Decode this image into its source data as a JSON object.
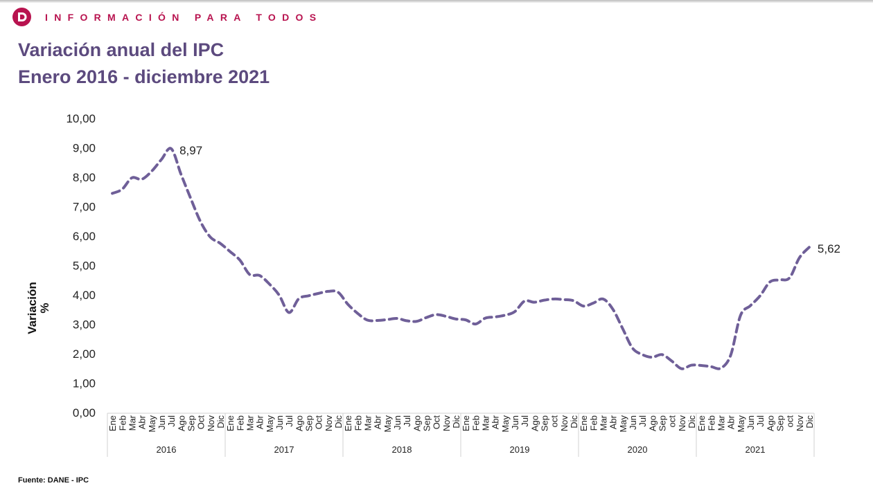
{
  "header": {
    "tagline": "INFORMACIÓN PARA TODOS",
    "logo": "dane-d-logo",
    "brand_color": "#b8134f"
  },
  "title": {
    "line1": "Variación anual del IPC",
    "line2": "Enero 2016 - diciembre 2021",
    "color": "#5c4a7e"
  },
  "footer": {
    "source": "Fuente: DANE - IPC"
  },
  "chart_data": {
    "type": "line",
    "title": "Variación anual del IPC Enero 2016 - diciembre 2021",
    "xlabel": "",
    "ylabel": "Variación %",
    "ylim": [
      0,
      10
    ],
    "yticks": [
      "0,00",
      "1,00",
      "2,00",
      "3,00",
      "4,00",
      "5,00",
      "6,00",
      "7,00",
      "8,00",
      "9,00",
      "10,00"
    ],
    "grid": false,
    "legend": "none",
    "line_style": "dashed",
    "line_color": "#6f5f98",
    "groups": [
      {
        "year": "2016",
        "months": [
          "Ene",
          "Feb",
          "Mar",
          "Abr",
          "May",
          "Jun",
          "Jul",
          "Ago",
          "Sep",
          "Oct",
          "Nov",
          "Dic"
        ]
      },
      {
        "year": "2017",
        "months": [
          "Ene",
          "Feb",
          "Mar",
          "Abr",
          "May",
          "Jun",
          "Jul",
          "Ago",
          "Sep",
          "Oct",
          "Nov",
          "Dic"
        ]
      },
      {
        "year": "2018",
        "months": [
          "Ene",
          "Feb",
          "Mar",
          "Abr",
          "May",
          "Jun",
          "Jul",
          "Ago",
          "Sep",
          "Oct",
          "Nov",
          "Dic"
        ]
      },
      {
        "year": "2019",
        "months": [
          "Ene",
          "Feb",
          "Mar",
          "Abr",
          "May",
          "Jun",
          "Jul",
          "Ago",
          "Sep",
          "oct",
          "Nov",
          "Dic"
        ]
      },
      {
        "year": "2020",
        "months": [
          "Ene",
          "Feb",
          "Mar",
          "Abr",
          "May",
          "Jun",
          "Jul",
          "Ago",
          "Sep",
          "oct",
          "Nov",
          "Dic"
        ]
      },
      {
        "year": "2021",
        "months": [
          "Ene",
          "Feb",
          "Mar",
          "Abr",
          "May",
          "Jun",
          "Jul",
          "Ago",
          "Sep",
          "oct",
          "Nov",
          "Dic"
        ]
      }
    ],
    "series": [
      {
        "name": "Variación anual IPC",
        "values": [
          7.45,
          7.59,
          7.98,
          7.93,
          8.2,
          8.6,
          8.97,
          8.1,
          7.27,
          6.48,
          5.96,
          5.75,
          5.47,
          5.18,
          4.69,
          4.66,
          4.37,
          3.99,
          3.4,
          3.87,
          3.97,
          4.05,
          4.12,
          4.09,
          3.68,
          3.37,
          3.14,
          3.13,
          3.16,
          3.2,
          3.12,
          3.1,
          3.23,
          3.33,
          3.27,
          3.18,
          3.15,
          3.01,
          3.21,
          3.25,
          3.31,
          3.43,
          3.79,
          3.75,
          3.82,
          3.86,
          3.84,
          3.8,
          3.62,
          3.72,
          3.86,
          3.51,
          2.85,
          2.19,
          1.97,
          1.88,
          1.97,
          1.75,
          1.49,
          1.61,
          1.6,
          1.56,
          1.51,
          1.95,
          3.3,
          3.63,
          3.97,
          4.44,
          4.51,
          4.58,
          5.26,
          5.62
        ]
      }
    ],
    "annotations": [
      {
        "label": "8,97",
        "index": 6
      },
      {
        "label": "5,62",
        "index": 71
      }
    ]
  }
}
